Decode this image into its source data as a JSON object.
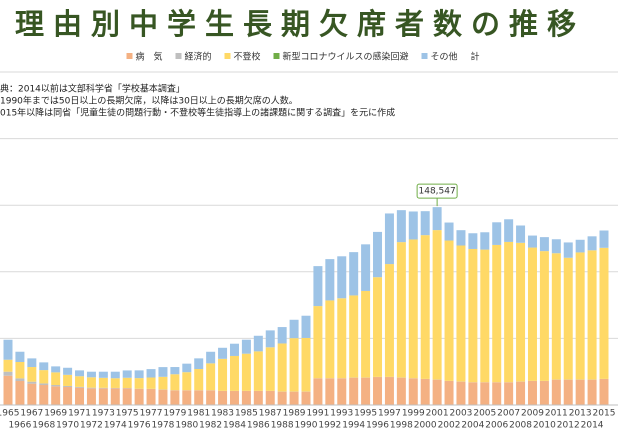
{
  "chart_data": {
    "type": "stacked_bar",
    "title": "理由別中学生長期欠席者数の推移",
    "notes": [
      "典：2014以前は文部科学省「学校基本調査」",
      "1990年までは50日以上の長期欠席，以降は30日以上の長期欠席の人数。",
      "015年以降は同省「児童生徒の問題行動・不登校等生徒指導上の諸課題に関する調査」を元に作成"
    ],
    "total_legend": "計",
    "annotation": {
      "text": "148,547",
      "category": "2001"
    },
    "categories": [
      "1965",
      "1966",
      "1967",
      "1968",
      "1969",
      "1970",
      "1971",
      "1972",
      "1973",
      "1974",
      "1975",
      "1976",
      "1977",
      "1978",
      "1979",
      "1980",
      "1981",
      "1982",
      "1983",
      "1984",
      "1985",
      "1986",
      "1987",
      "1988",
      "1989",
      "1990",
      "1991",
      "1992",
      "1993",
      "1994",
      "1995",
      "1996",
      "1997",
      "1998",
      "1999",
      "2000",
      "2001",
      "2002",
      "2003",
      "2004",
      "2005",
      "2006",
      "2007",
      "2008",
      "2009",
      "2010",
      "2011",
      "2012",
      "2013",
      "2014",
      "2015"
    ],
    "series": [
      {
        "name": "病　気",
        "color": "#f4b183",
        "values": [
          22000,
          18000,
          16000,
          15000,
          14000,
          13500,
          13000,
          12500,
          12500,
          12500,
          12500,
          12000,
          12000,
          11500,
          11000,
          11000,
          11000,
          11000,
          10500,
          10500,
          10500,
          10500,
          10500,
          10000,
          10000,
          10000,
          20000,
          20000,
          20000,
          20500,
          20500,
          21000,
          21000,
          20500,
          20000,
          19500,
          19000,
          18000,
          17500,
          17000,
          17000,
          17000,
          17000,
          17500,
          18000,
          18000,
          19000,
          19000,
          19000,
          19000,
          19500
        ]
      },
      {
        "name": "経済的",
        "color": "#bfbfbf",
        "values": [
          3000,
          2000,
          1500,
          1200,
          1000,
          800,
          600,
          500,
          400,
          300,
          250,
          200,
          150,
          150,
          100,
          100,
          100,
          100,
          100,
          100,
          100,
          100,
          100,
          100,
          100,
          100,
          100,
          100,
          100,
          100,
          100,
          100,
          100,
          100,
          100,
          100,
          100,
          100,
          100,
          100,
          100,
          100,
          100,
          100,
          100,
          100,
          100,
          100,
          100,
          100,
          100
        ]
      },
      {
        "name": "不登校",
        "color": "#ffd966",
        "values": [
          9000,
          12286,
          11000,
          10000,
          9500,
          8357,
          8000,
          7800,
          7500,
          7300,
          7704,
          8000,
          8500,
          9500,
          12000,
          13536,
          15912,
          20165,
          24059,
          26215,
          27926,
          29673,
          32725,
          36110,
          40087,
          40223,
          54172,
          58421,
          60039,
          61663,
          65022,
          74853,
          84701,
          101675,
          104180,
          107913,
          112211,
          105383,
          102149,
          100040,
          99578,
          103069,
          105328,
          104153,
          100105,
          97428,
          94836,
          91446,
          95442,
          97033,
          98408
        ]
      },
      {
        "name": "新型コロナウイルスの感染回避",
        "color": "#70ad47",
        "values": [
          0,
          0,
          0,
          0,
          0,
          0,
          0,
          0,
          0,
          0,
          0,
          0,
          0,
          0,
          0,
          0,
          0,
          0,
          0,
          0,
          0,
          0,
          0,
          0,
          0,
          0,
          0,
          0,
          0,
          0,
          0,
          0,
          0,
          0,
          0,
          0,
          0,
          0,
          0,
          0,
          0,
          0,
          0,
          0,
          0,
          0,
          0,
          0,
          0,
          0,
          0
        ]
      },
      {
        "name": "その他",
        "color": "#9dc3e6",
        "values": [
          15000,
          7700,
          6500,
          5800,
          4500,
          5300,
          4400,
          4200,
          4600,
          4900,
          5500,
          5800,
          6300,
          7300,
          5400,
          6400,
          8000,
          8700,
          8300,
          9200,
          10500,
          11700,
          12700,
          12300,
          13800,
          16700,
          30000,
          31000,
          31500,
          32500,
          35000,
          34000,
          38000,
          24000,
          21000,
          18000,
          17236,
          13500,
          11500,
          11800,
          13000,
          17000,
          17000,
          13000,
          9000,
          10500,
          10500,
          11500,
          9500,
          10500,
          13000
        ]
      }
    ],
    "ylim": [
      0,
      250000
    ],
    "yticks": [
      0,
      50000,
      100000,
      150000,
      200000,
      250000
    ],
    "grid": true
  }
}
